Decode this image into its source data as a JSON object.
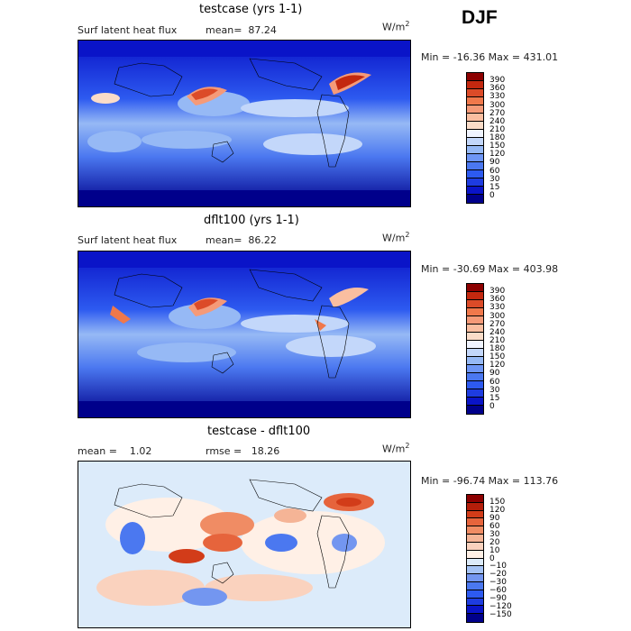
{
  "season": "DJF",
  "units": {
    "base": "W/m",
    "exp": "2"
  },
  "panels": [
    {
      "title": "testcase (yrs 1-1)",
      "left_label": "Surf latent heat flux",
      "stat_text": "mean=  87.24",
      "minmax": "Min = -16.36 Max = 431.01"
    },
    {
      "title": "dflt100 (yrs 1-1)",
      "left_label": "Surf latent heat flux",
      "stat_text": "mean=  86.22",
      "minmax": "Min = -30.69 Max = 403.98"
    },
    {
      "title": "testcase - dflt100",
      "left_label": "mean =    1.02",
      "stat_text": "rmse =   18.26",
      "minmax": "Min = -96.74 Max = 113.76"
    }
  ],
  "chart_data": [
    {
      "type": "heatmap",
      "title": "testcase (yrs 1-1)",
      "variable": "Surf latent heat flux",
      "units": "W/m2",
      "mean": 87.24,
      "min": -16.36,
      "max": 431.01,
      "levels": [
        0,
        15,
        30,
        60,
        90,
        120,
        150,
        180,
        210,
        240,
        270,
        300,
        330,
        360,
        390
      ],
      "colors": [
        "#00008b",
        "#0a14c8",
        "#1e3ce0",
        "#2d5af0",
        "#4b78f0",
        "#6e96f5",
        "#96b9f5",
        "#c3d7fa",
        "#f0f4ff",
        "#fadcc8",
        "#fabea0",
        "#f59a78",
        "#f0784b",
        "#dc4b28",
        "#c3280f",
        "#8c0000"
      ]
    },
    {
      "type": "heatmap",
      "title": "dflt100 (yrs 1-1)",
      "variable": "Surf latent heat flux",
      "units": "W/m2",
      "mean": 86.22,
      "min": -30.69,
      "max": 403.98,
      "levels": [
        0,
        15,
        30,
        60,
        90,
        120,
        150,
        180,
        210,
        240,
        270,
        300,
        330,
        360,
        390
      ],
      "colors": [
        "#00008b",
        "#0a14c8",
        "#1e3ce0",
        "#2d5af0",
        "#4b78f0",
        "#6e96f5",
        "#96b9f5",
        "#c3d7fa",
        "#f0f4ff",
        "#fadcc8",
        "#fabea0",
        "#f59a78",
        "#f0784b",
        "#dc4b28",
        "#c3280f",
        "#8c0000"
      ]
    },
    {
      "type": "heatmap",
      "title": "testcase - dflt100",
      "units": "W/m2",
      "mean": 1.02,
      "rmse": 18.26,
      "min": -96.74,
      "max": 113.76,
      "levels": [
        -150,
        -120,
        -90,
        -60,
        -30,
        -20,
        -10,
        0,
        10,
        20,
        30,
        60,
        90,
        120,
        150
      ],
      "colors": [
        "#00008b",
        "#0a14c8",
        "#1e3ce0",
        "#2d5af0",
        "#4b78f0",
        "#7396f0",
        "#a5c3f5",
        "#dcebfa",
        "#fff0e6",
        "#fad2be",
        "#f5b496",
        "#f08c64",
        "#e6643c",
        "#d23c19",
        "#b41e0a",
        "#8c0000"
      ]
    }
  ]
}
